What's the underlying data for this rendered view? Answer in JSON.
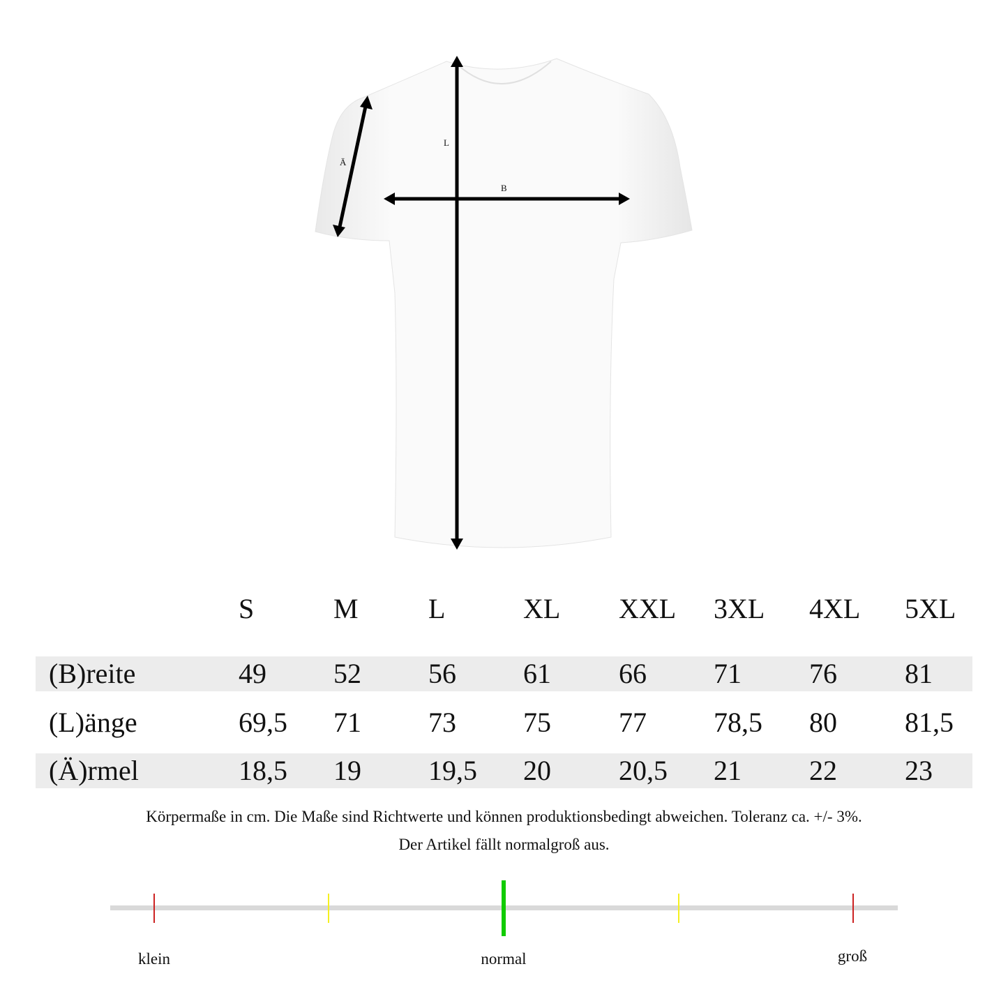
{
  "diagram": {
    "measure_labels": {
      "length": "L",
      "width": "B",
      "sleeve": "Ä"
    }
  },
  "size_table": {
    "sizes": [
      "S",
      "M",
      "L",
      "XL",
      "XXL",
      "3XL",
      "4XL",
      "5XL"
    ],
    "rows": [
      {
        "label": "(B)reite",
        "values": [
          "49",
          "52",
          "56",
          "61",
          "66",
          "71",
          "76",
          "81"
        ],
        "shaded": true
      },
      {
        "label": "(L)änge",
        "values": [
          "69,5",
          "71",
          "73",
          "75",
          "77",
          "78,5",
          "80",
          "81,5"
        ],
        "shaded": false
      },
      {
        "label": "(Ä)rmel",
        "values": [
          "18,5",
          "19",
          "19,5",
          "20",
          "20,5",
          "21",
          "22",
          "23"
        ],
        "shaded": true
      }
    ]
  },
  "notes": {
    "line1": "Körpermaße in cm. Die Maße sind Richtwerte und können produktionsbedingt abweichen. Toleranz ca. +/- 3%.",
    "line2": "Der Artikel fällt normalgroß aus."
  },
  "fit_scale": {
    "labels": {
      "small": "klein",
      "normal": "normal",
      "large": "groß"
    },
    "indicator_position": 0.5,
    "colors": {
      "track": "#d9d9d9",
      "outer": "#cc2222",
      "inner": "#f5f020",
      "indicator": "#11cc00"
    }
  }
}
